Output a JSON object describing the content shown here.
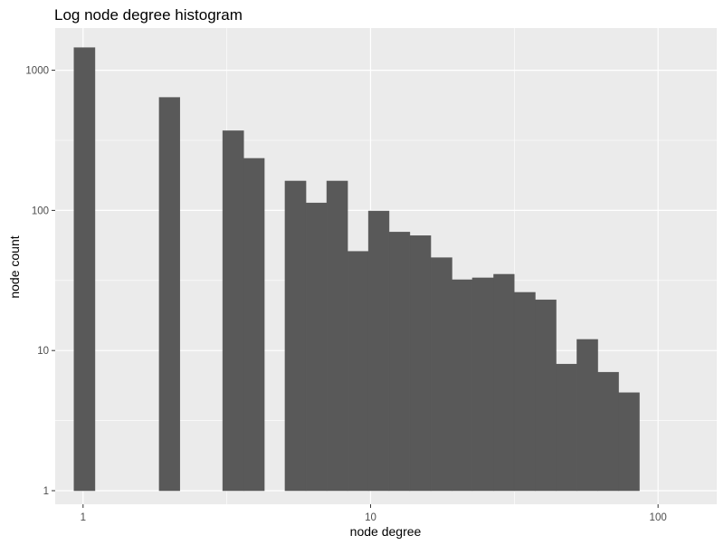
{
  "chart_data": {
    "type": "bar",
    "title": "Log node degree histogram",
    "xlabel": "node degree",
    "ylabel": "node count",
    "x_scale": "log10",
    "y_scale": "log10",
    "xlim": [
      0.8,
      160
    ],
    "ylim": [
      0.8,
      2000
    ],
    "x_ticks": [
      1,
      10,
      100
    ],
    "x_tick_labels": [
      "1",
      "10",
      "100"
    ],
    "y_ticks": [
      1,
      10,
      100,
      1000
    ],
    "y_tick_labels": [
      "1",
      "10",
      "100",
      "1000"
    ],
    "grid": true,
    "legend": "none",
    "bar_color": "#595959",
    "panel_color": "#ebebeb",
    "grid_color": "#ffffff",
    "bins": [
      {
        "x_start": 0.93,
        "x_end": 1.1,
        "count": 1450
      },
      {
        "x_start": 1.84,
        "x_end": 2.17,
        "count": 640
      },
      {
        "x_start": 3.06,
        "x_end": 3.62,
        "count": 370
      },
      {
        "x_start": 3.62,
        "x_end": 4.27,
        "count": 235
      },
      {
        "x_start": 5.04,
        "x_end": 5.96,
        "count": 162
      },
      {
        "x_start": 5.96,
        "x_end": 7.04,
        "count": 113
      },
      {
        "x_start": 7.04,
        "x_end": 8.32,
        "count": 162
      },
      {
        "x_start": 8.32,
        "x_end": 9.83,
        "count": 51
      },
      {
        "x_start": 9.83,
        "x_end": 11.6,
        "count": 99
      },
      {
        "x_start": 11.6,
        "x_end": 13.7,
        "count": 70
      },
      {
        "x_start": 13.7,
        "x_end": 16.2,
        "count": 66
      },
      {
        "x_start": 16.2,
        "x_end": 19.2,
        "count": 46
      },
      {
        "x_start": 19.2,
        "x_end": 22.6,
        "count": 32
      },
      {
        "x_start": 22.6,
        "x_end": 26.8,
        "count": 33
      },
      {
        "x_start": 26.8,
        "x_end": 31.6,
        "count": 35
      },
      {
        "x_start": 31.6,
        "x_end": 37.4,
        "count": 26
      },
      {
        "x_start": 37.4,
        "x_end": 44.2,
        "count": 23
      },
      {
        "x_start": 44.2,
        "x_end": 52.2,
        "count": 8
      },
      {
        "x_start": 52.2,
        "x_end": 61.7,
        "count": 12
      },
      {
        "x_start": 61.7,
        "x_end": 72.9,
        "count": 7
      },
      {
        "x_start": 72.9,
        "x_end": 86.1,
        "count": 5
      }
    ]
  }
}
